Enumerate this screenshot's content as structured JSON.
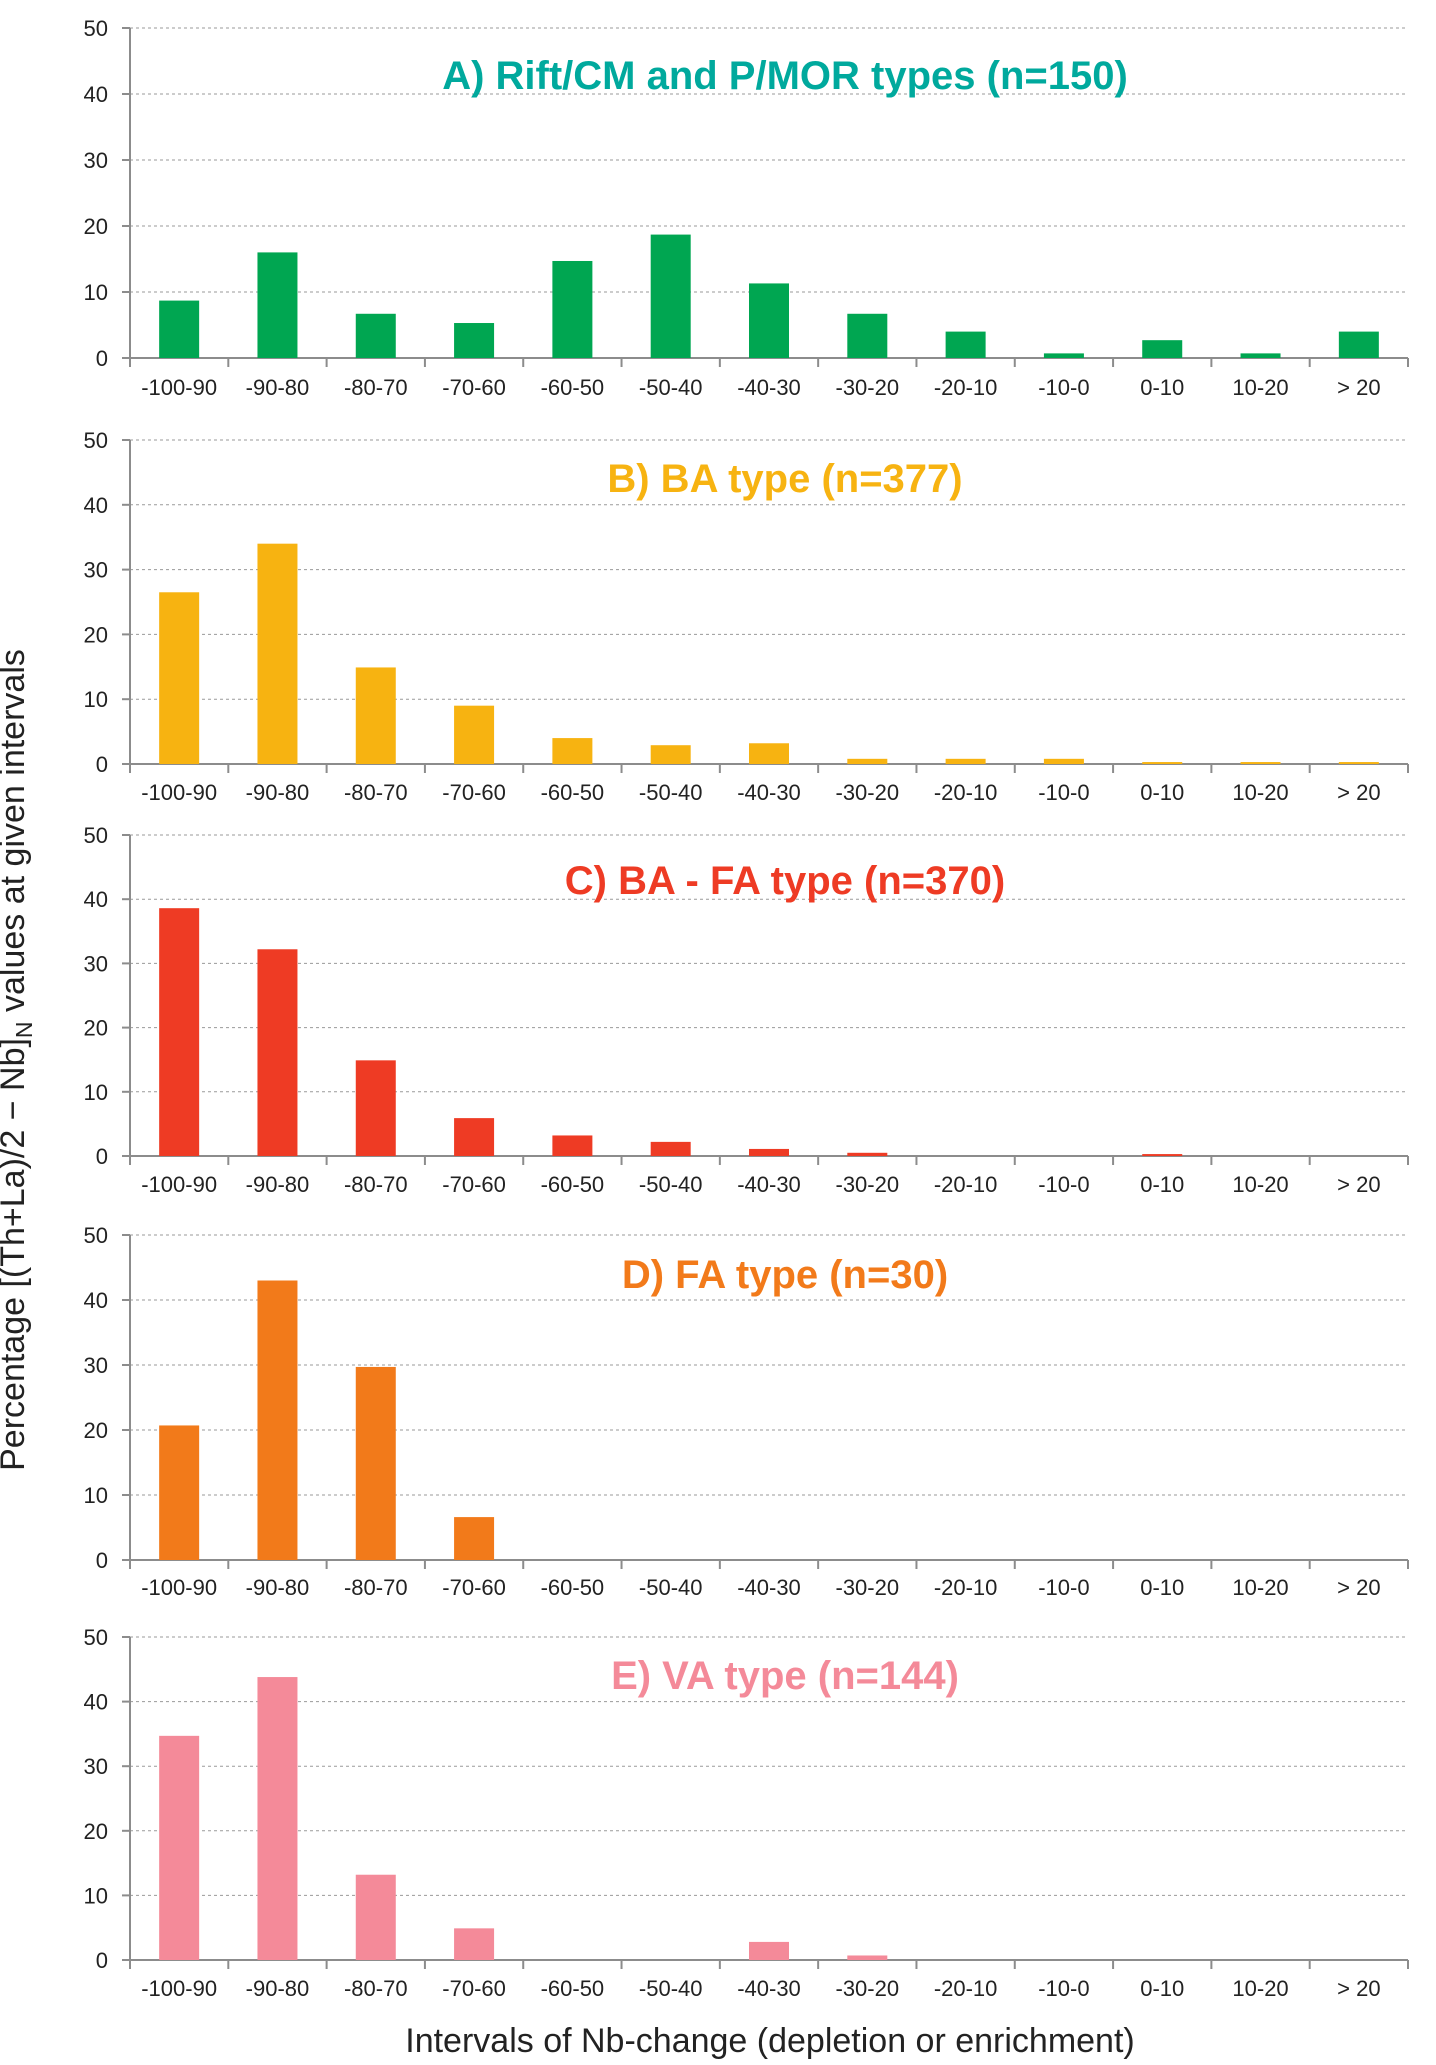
{
  "figure": {
    "ylabel_prefix": "Percentage [(Th+La)/2 − Nb]",
    "ylabel_sub": "N",
    "ylabel_suffix": " values at given intervals",
    "xlabel": "Intervals of Nb-change (depletion or enrichment)"
  },
  "chart_data": [
    {
      "type": "bar",
      "title": "A) Rift/CM and P/MOR types (n=150)",
      "color": "#00a651",
      "title_color": "#00a99d",
      "categories": [
        "-100-90",
        "-90-80",
        "-80-70",
        "-70-60",
        "-60-50",
        "-50-40",
        "-40-30",
        "-30-20",
        "-20-10",
        "-10-0",
        "0-10",
        "10-20",
        "> 20"
      ],
      "values": [
        8.7,
        16.0,
        6.7,
        5.3,
        14.7,
        18.7,
        11.3,
        6.7,
        4.0,
        0.7,
        2.7,
        0.7,
        4.0
      ],
      "yticks": [
        "0",
        "10",
        "20",
        "30",
        "40",
        "50"
      ],
      "ylim": [
        0,
        50
      ],
      "grid": true
    },
    {
      "type": "bar",
      "title": "B) BA type (n=377)",
      "color": "#f7b311",
      "title_color": "#f7b311",
      "categories": [
        "-100-90",
        "-90-80",
        "-80-70",
        "-70-60",
        "-60-50",
        "-50-40",
        "-40-30",
        "-30-20",
        "-20-10",
        "-10-0",
        "0-10",
        "10-20",
        "> 20"
      ],
      "values": [
        26.5,
        34.0,
        14.9,
        9.0,
        4.0,
        2.9,
        3.2,
        0.8,
        0.8,
        0.8,
        0.3,
        0.3,
        0.3
      ],
      "yticks": [
        "0",
        "10",
        "20",
        "30",
        "40",
        "50"
      ],
      "ylim": [
        0,
        50
      ],
      "grid": true
    },
    {
      "type": "bar",
      "title": "C) BA - FA type (n=370)",
      "color": "#ee3b24",
      "title_color": "#ee3b24",
      "categories": [
        "-100-90",
        "-90-80",
        "-80-70",
        "-70-60",
        "-60-50",
        "-50-40",
        "-40-30",
        "-30-20",
        "-20-10",
        "-10-0",
        "0-10",
        "10-20",
        "> 20"
      ],
      "values": [
        38.6,
        32.2,
        14.9,
        5.9,
        3.2,
        2.2,
        1.1,
        0.5,
        0,
        0,
        0.3,
        0,
        0
      ],
      "yticks": [
        "0",
        "10",
        "20",
        "30",
        "40",
        "50"
      ],
      "ylim": [
        0,
        50
      ],
      "grid": true
    },
    {
      "type": "bar",
      "title": "D) FA type (n=30)",
      "color": "#f27a1a",
      "title_color": "#f27a1a",
      "categories": [
        "-100-90",
        "-90-80",
        "-80-70",
        "-70-60",
        "-60-50",
        "-50-40",
        "-40-30",
        "-30-20",
        "-20-10",
        "-10-0",
        "0-10",
        "10-20",
        "> 20"
      ],
      "values": [
        20.7,
        43.0,
        29.7,
        6.6,
        0,
        0,
        0,
        0,
        0,
        0,
        0,
        0,
        0
      ],
      "yticks": [
        "0",
        "10",
        "20",
        "30",
        "40",
        "50"
      ],
      "ylim": [
        0,
        50
      ],
      "grid": true
    },
    {
      "type": "bar",
      "title": "E) VA type (n=144)",
      "color": "#f48a99",
      "title_color": "#f48a99",
      "categories": [
        "-100-90",
        "-90-80",
        "-80-70",
        "-70-60",
        "-60-50",
        "-50-40",
        "-40-30",
        "-30-20",
        "-20-10",
        "-10-0",
        "0-10",
        "10-20",
        "> 20"
      ],
      "values": [
        34.7,
        43.8,
        13.2,
        4.9,
        0,
        0,
        2.8,
        0.7,
        0,
        0,
        0,
        0,
        0
      ],
      "yticks": [
        "0",
        "10",
        "20",
        "30",
        "40",
        "50"
      ],
      "ylim": [
        0,
        50
      ],
      "grid": true
    }
  ]
}
